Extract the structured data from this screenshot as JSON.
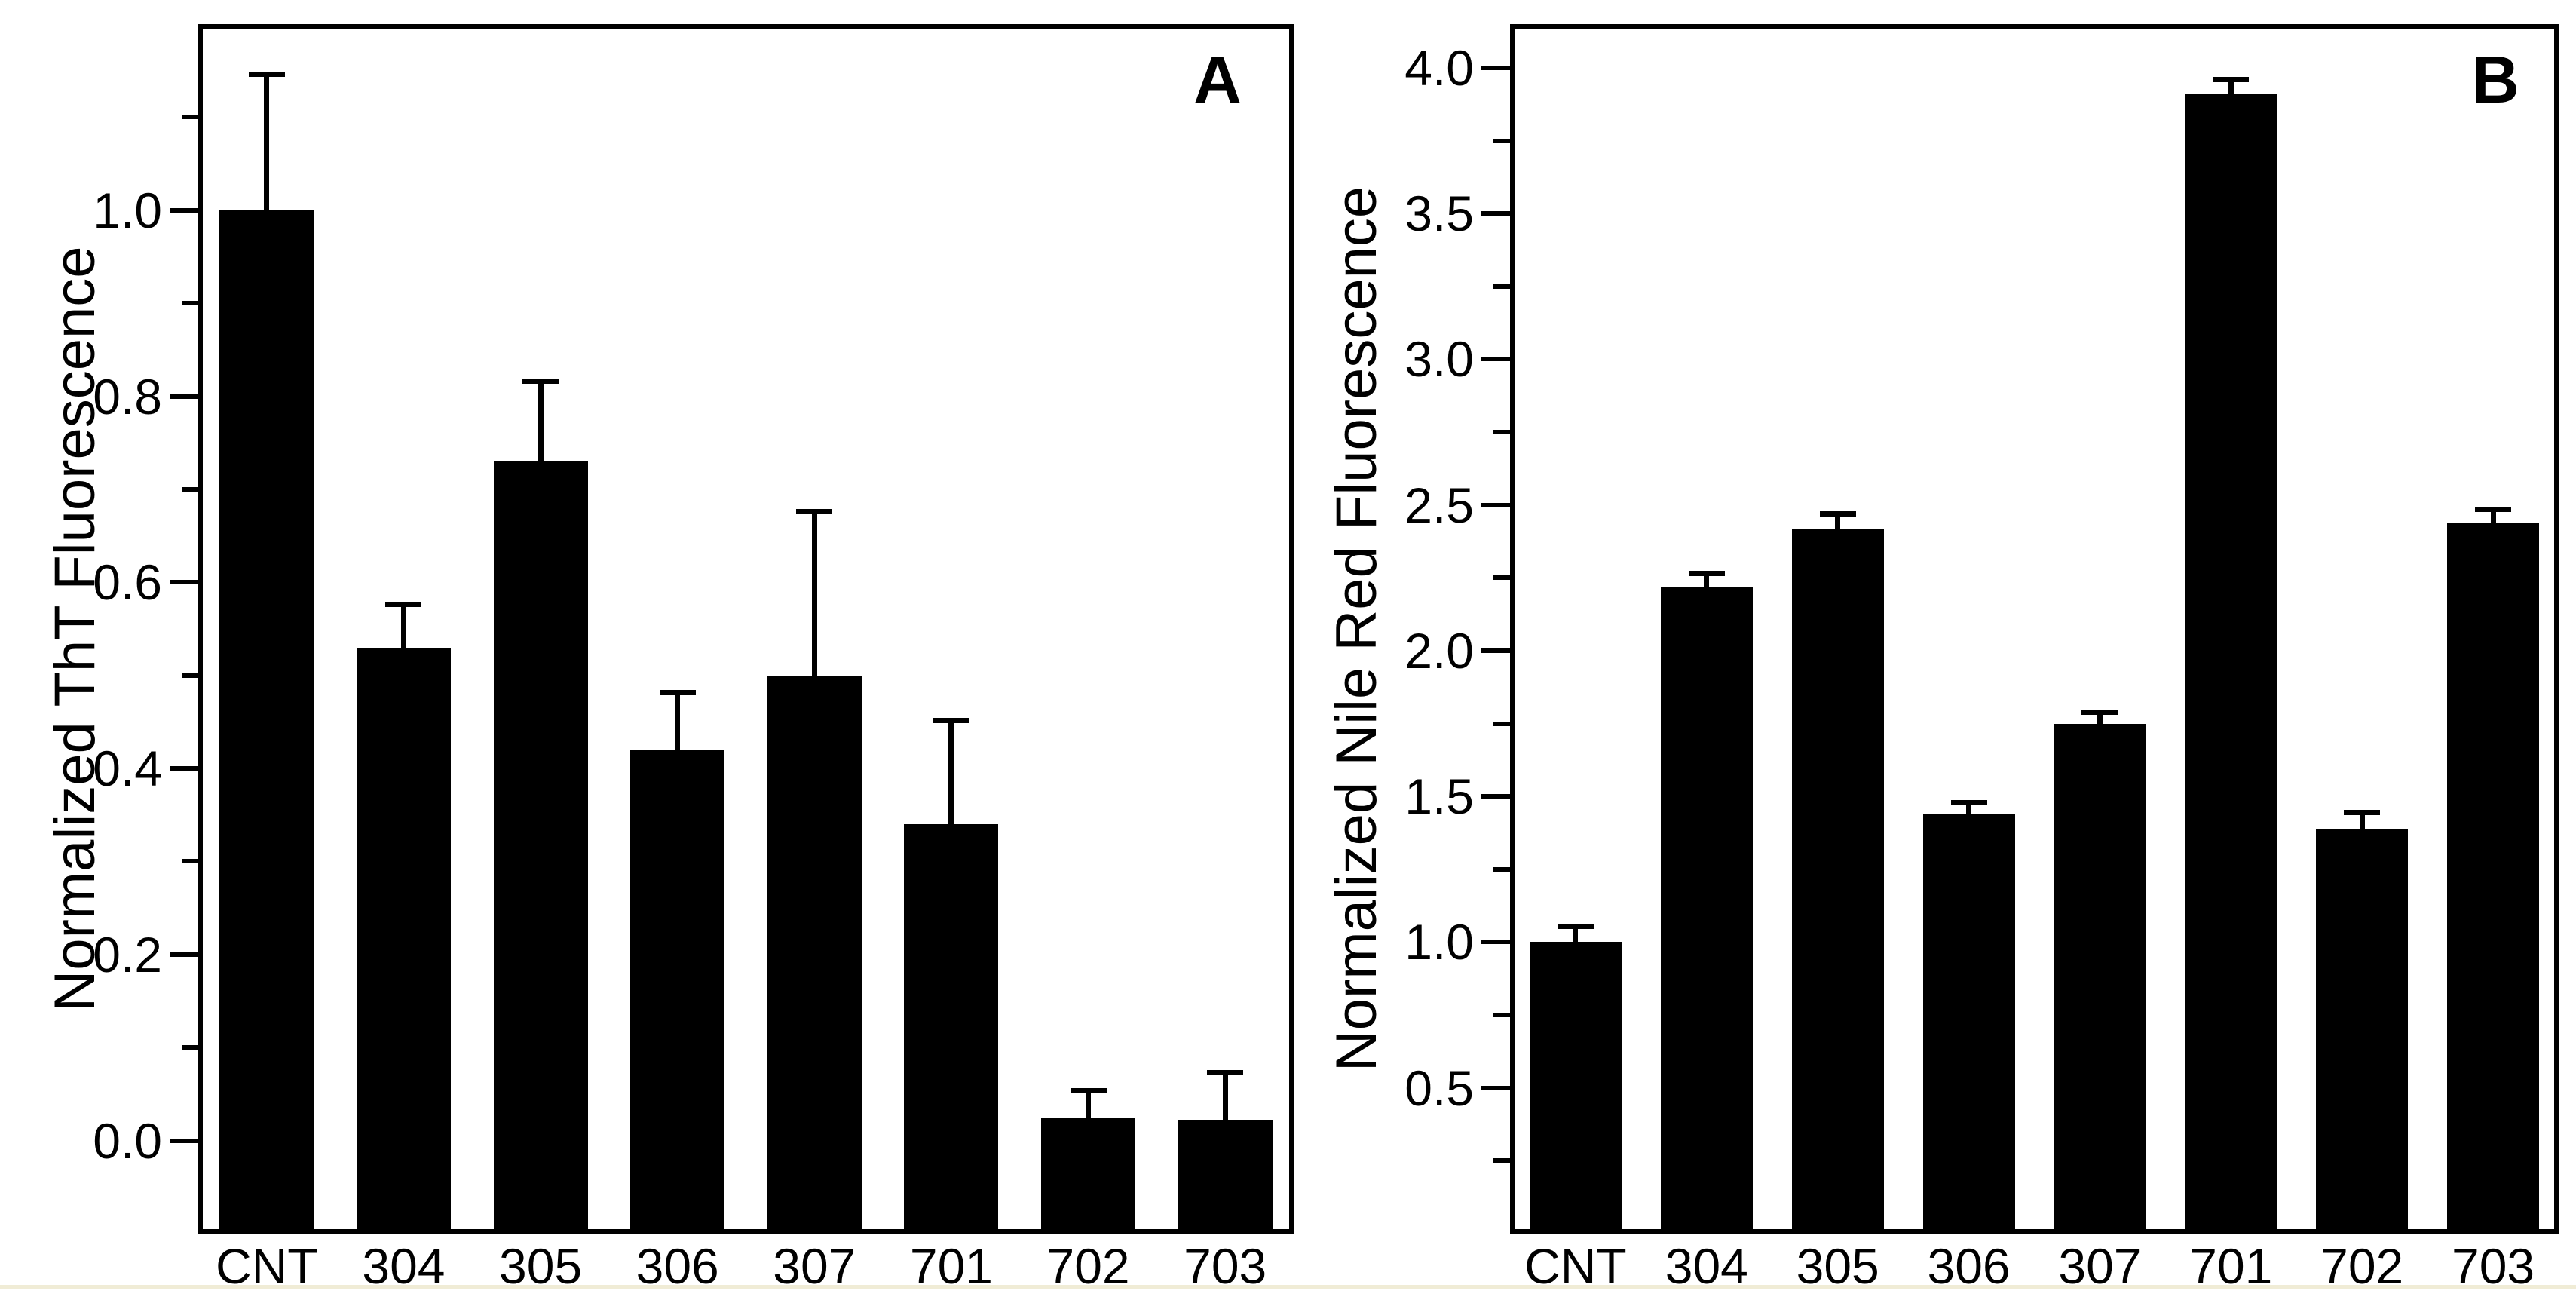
{
  "figure": {
    "background": "#ffffff",
    "bar_color": "#000000",
    "axis_color": "#000000",
    "bottom_rule_color": "#f0ecd6"
  },
  "chart_data": [
    {
      "type": "bar",
      "panel_label": "A",
      "title": "",
      "xlabel": "",
      "ylabel": "Normalized ThT Fluorescence",
      "categories": [
        "CNT",
        "304",
        "305",
        "306",
        "307",
        "701",
        "702",
        "703"
      ],
      "values": [
        1.0,
        0.53,
        0.73,
        0.42,
        0.5,
        0.34,
        0.025,
        0.022
      ],
      "errors_plus": [
        0.145,
        0.045,
        0.085,
        0.06,
        0.175,
        0.11,
        0.027,
        0.05
      ],
      "ylim": [
        -0.1,
        1.2
      ],
      "yticks_major": [
        0.0,
        0.2,
        0.4,
        0.6,
        0.8,
        1.0
      ],
      "yticks_minor": [
        0.1,
        0.3,
        0.5,
        0.7,
        0.9,
        1.1
      ],
      "tick_decimals": 1,
      "grid": "off",
      "legend": "none",
      "error_bars": "upper only, capped"
    },
    {
      "type": "bar",
      "panel_label": "B",
      "title": "",
      "xlabel": "",
      "ylabel": "Normalized Nile Red Fluorescence",
      "categories": [
        "CNT",
        "304",
        "305",
        "306",
        "307",
        "701",
        "702",
        "703"
      ],
      "values": [
        1.0,
        2.22,
        2.42,
        1.44,
        1.75,
        3.91,
        1.39,
        2.44
      ],
      "errors_plus": [
        0.05,
        0.04,
        0.045,
        0.035,
        0.035,
        0.045,
        0.05,
        0.04
      ],
      "ylim": [
        0.0,
        4.15
      ],
      "yticks_major": [
        0.5,
        1.0,
        1.5,
        2.0,
        2.5,
        3.0,
        3.5,
        4.0
      ],
      "yticks_minor": [
        0.25,
        0.75,
        1.25,
        1.75,
        2.25,
        2.75,
        3.25,
        3.75
      ],
      "tick_decimals": 1,
      "grid": "off",
      "legend": "none",
      "error_bars": "upper only, capped"
    }
  ]
}
